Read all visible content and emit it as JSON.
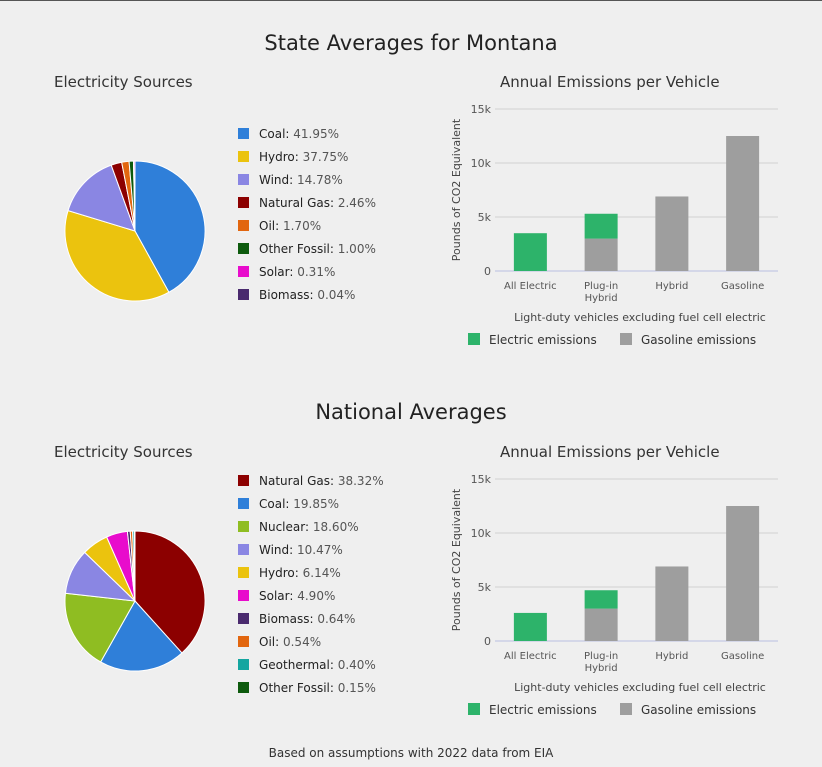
{
  "footer": "Based on assumptions with 2022 data from EIA",
  "sections": [
    {
      "title": "State Averages for Montana",
      "pie_title": "Electricity Sources",
      "bar_title": "Annual Emissions per Vehicle"
    },
    {
      "title": "National Averages",
      "pie_title": "Electricity Sources",
      "bar_title": "Annual Emissions per Vehicle"
    }
  ],
  "chart_data": [
    {
      "type": "pie",
      "title": "Electricity Sources",
      "slices": [
        {
          "label": "Coal",
          "pct_text": "41.95%",
          "value": 41.95,
          "color": "#2f7fd9"
        },
        {
          "label": "Hydro",
          "pct_text": "37.75%",
          "value": 37.75,
          "color": "#ebc30e"
        },
        {
          "label": "Wind",
          "pct_text": "14.78%",
          "value": 14.78,
          "color": "#8a86e3"
        },
        {
          "label": "Natural Gas",
          "pct_text": "2.46%",
          "value": 2.46,
          "color": "#8c0000"
        },
        {
          "label": "Oil",
          "pct_text": "1.70%",
          "value": 1.7,
          "color": "#e2660f"
        },
        {
          "label": "Other Fossil",
          "pct_text": "1.00%",
          "value": 1.0,
          "color": "#0d5a0d"
        },
        {
          "label": "Solar",
          "pct_text": "0.31%",
          "value": 0.31,
          "color": "#e80ccc"
        },
        {
          "label": "Biomass",
          "pct_text": "0.04%",
          "value": 0.04,
          "color": "#4a2a6e"
        }
      ]
    },
    {
      "type": "bar",
      "stacked": true,
      "title": "Annual Emissions per Vehicle",
      "categories": [
        [
          "All Electric"
        ],
        [
          "Plug-in",
          "Hybrid"
        ],
        [
          "Hybrid"
        ],
        [
          "Gasoline"
        ]
      ],
      "series": [
        {
          "name": "Electric emissions",
          "color": "#2db36a",
          "values": [
            3500,
            2300,
            0,
            0
          ]
        },
        {
          "name": "Gasoline emissions",
          "color": "#9e9e9e",
          "values": [
            0,
            3000,
            6900,
            12500
          ]
        }
      ],
      "ylabel": "Pounds of CO2 Equivalent",
      "xlabel": "Light-duty vehicles excluding fuel cell electric",
      "ylim": [
        0,
        15000
      ],
      "yticks": [
        0,
        5000,
        10000,
        15000
      ],
      "ytick_labels": [
        "0",
        "5k",
        "10k",
        "15k"
      ],
      "grid": true,
      "legend": "bottom"
    },
    {
      "type": "pie",
      "title": "Electricity Sources",
      "slices": [
        {
          "label": "Natural Gas",
          "pct_text": "38.32%",
          "value": 38.32,
          "color": "#8c0000"
        },
        {
          "label": "Coal",
          "pct_text": "19.85%",
          "value": 19.85,
          "color": "#2f7fd9"
        },
        {
          "label": "Nuclear",
          "pct_text": "18.60%",
          "value": 18.6,
          "color": "#8fbd22"
        },
        {
          "label": "Wind",
          "pct_text": "10.47%",
          "value": 10.47,
          "color": "#8a86e3"
        },
        {
          "label": "Hydro",
          "pct_text": "6.14%",
          "value": 6.14,
          "color": "#ebc30e"
        },
        {
          "label": "Solar",
          "pct_text": "4.90%",
          "value": 4.9,
          "color": "#e80ccc"
        },
        {
          "label": "Biomass",
          "pct_text": "0.64%",
          "value": 0.64,
          "color": "#4a2a6e"
        },
        {
          "label": "Oil",
          "pct_text": "0.54%",
          "value": 0.54,
          "color": "#e2660f"
        },
        {
          "label": "Geothermal",
          "pct_text": "0.40%",
          "value": 0.4,
          "color": "#14a6a0"
        },
        {
          "label": "Other Fossil",
          "pct_text": "0.15%",
          "value": 0.15,
          "color": "#0d5a0d"
        }
      ]
    },
    {
      "type": "bar",
      "stacked": true,
      "title": "Annual Emissions per Vehicle",
      "categories": [
        [
          "All Electric"
        ],
        [
          "Plug-in",
          "Hybrid"
        ],
        [
          "Hybrid"
        ],
        [
          "Gasoline"
        ]
      ],
      "series": [
        {
          "name": "Electric emissions",
          "color": "#2db36a",
          "values": [
            2600,
            1700,
            0,
            0
          ]
        },
        {
          "name": "Gasoline emissions",
          "color": "#9e9e9e",
          "values": [
            0,
            3000,
            6900,
            12500
          ]
        }
      ],
      "ylabel": "Pounds of CO2 Equivalent",
      "xlabel": "Light-duty vehicles excluding fuel cell electric",
      "ylim": [
        0,
        15000
      ],
      "yticks": [
        0,
        5000,
        10000,
        15000
      ],
      "ytick_labels": [
        "0",
        "5k",
        "10k",
        "15k"
      ],
      "grid": true,
      "legend": "bottom"
    }
  ]
}
